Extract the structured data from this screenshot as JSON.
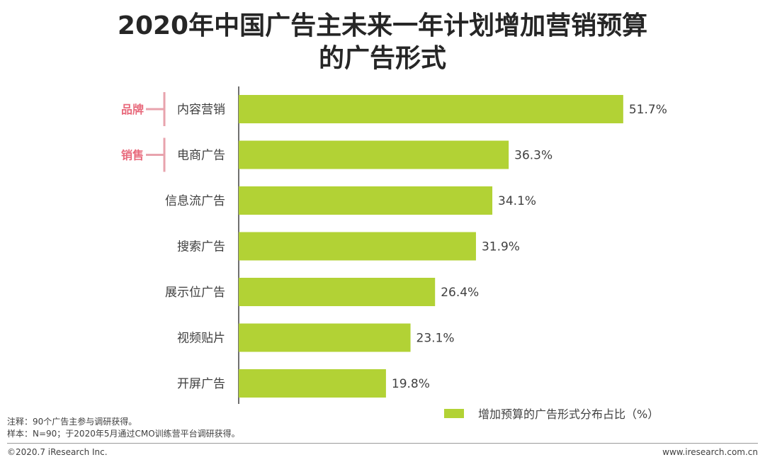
{
  "title": {
    "line1": "2020年中国广告主未来一年计划增加营销预算",
    "line2": "的广告形式"
  },
  "chart_data": {
    "type": "bar",
    "orientation": "horizontal",
    "categories": [
      "内容营销",
      "电商广告",
      "信息流广告",
      "搜索广告",
      "展示位广告",
      "视频贴片",
      "开屏广告"
    ],
    "values": [
      51.7,
      36.3,
      34.1,
      31.9,
      26.4,
      23.1,
      19.8
    ],
    "value_labels": [
      "51.7%",
      "36.3%",
      "34.1%",
      "31.9%",
      "26.4%",
      "23.1%",
      "19.8%"
    ],
    "series": [
      {
        "name": "增加预算的广告形式分布占比（%）",
        "values": [
          51.7,
          36.3,
          34.1,
          31.9,
          26.4,
          23.1,
          19.8
        ]
      }
    ],
    "groups": [
      {
        "label": "品牌",
        "category": "内容营销"
      },
      {
        "label": "销售",
        "category": "电商广告"
      }
    ],
    "xlim": [
      0,
      60
    ],
    "grid": false,
    "legend_position": "bottom-right",
    "bar_color": "#b2d235",
    "group_color": "#e86a7c"
  },
  "legend": {
    "label": "增加预算的广告形式分布占比（%）"
  },
  "notes": {
    "line1": "注释：90个广告主参与调研获得。",
    "line2": "样本：N=90；于2020年5月通过CMO训练营平台调研获得。"
  },
  "footer": {
    "copyright": "©2020.7 iResearch Inc.",
    "website": "www.iresearch.com.cn"
  }
}
